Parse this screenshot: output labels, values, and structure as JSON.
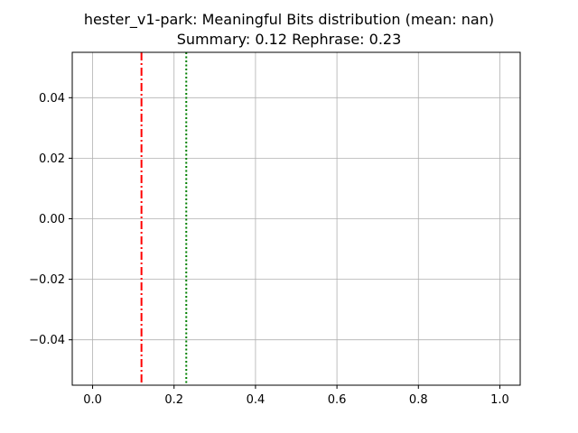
{
  "chart_data": {
    "type": "histogram",
    "title": "hester_v1-park: Meaningful Bits distribution (mean: nan)",
    "subtitle": "Summary: 0.12 Rephrase: 0.23",
    "xlabel": "",
    "ylabel": "",
    "xlim": [
      -0.05,
      1.05
    ],
    "ylim": [
      -0.055,
      0.055
    ],
    "x_ticks": [
      0.0,
      0.2,
      0.4,
      0.6,
      0.8,
      1.0
    ],
    "x_tick_labels": [
      "0.0",
      "0.2",
      "0.4",
      "0.6",
      "0.8",
      "1.0"
    ],
    "y_ticks": [
      0.04,
      0.02,
      0.0,
      -0.02,
      -0.04
    ],
    "y_tick_labels": [
      "0.04",
      "0.02",
      "0.00",
      "−0.02",
      "−0.04"
    ],
    "grid": true,
    "bars": [],
    "reference_lines": [
      {
        "name": "Summary",
        "x": 0.12,
        "color": "#ff0000",
        "style": "dashdot"
      },
      {
        "name": "Rephrase",
        "x": 0.23,
        "color": "#008000",
        "style": "dotted"
      }
    ]
  }
}
